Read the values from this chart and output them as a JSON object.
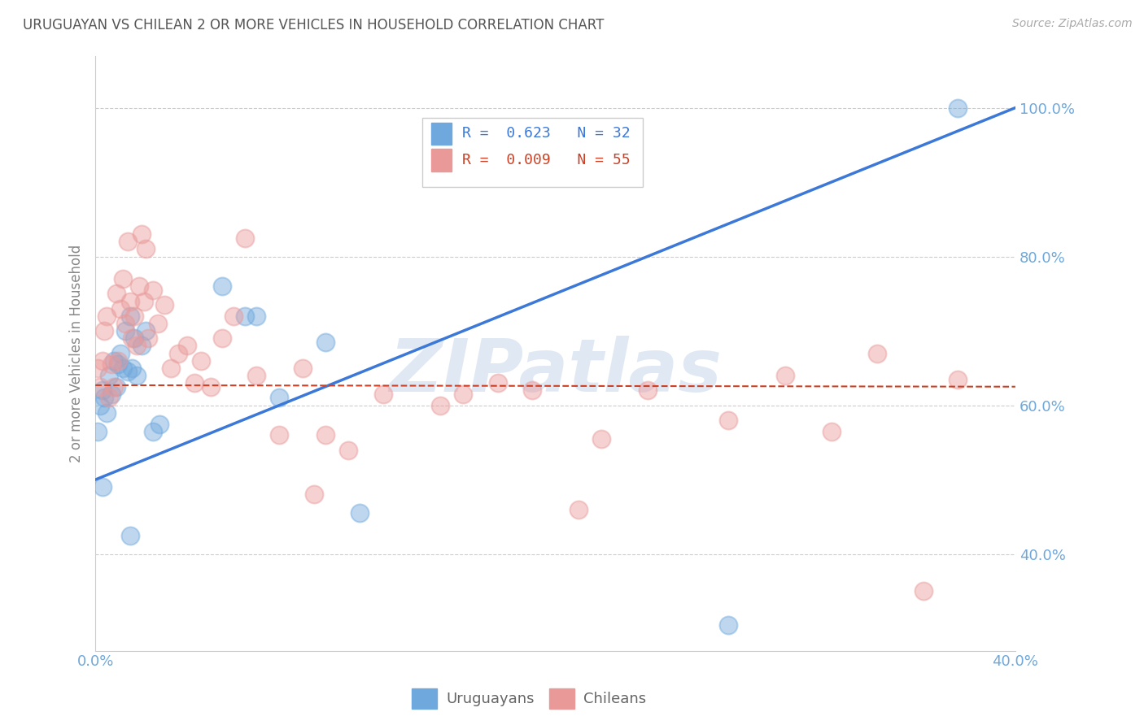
{
  "title": "URUGUAYAN VS CHILEAN 2 OR MORE VEHICLES IN HOUSEHOLD CORRELATION CHART",
  "source": "Source: ZipAtlas.com",
  "ylabel": "2 or more Vehicles in Household",
  "xlabel_uruguayans": "Uruguayans",
  "xlabel_chileans": "Chileans",
  "legend_line1": "R =  0.623   N = 32",
  "legend_line2": "R =  0.009   N = 55",
  "watermark": "ZIPatlas",
  "xlim": [
    0.0,
    0.4
  ],
  "ylim": [
    0.27,
    1.07
  ],
  "yticks": [
    0.4,
    0.6,
    0.8,
    1.0
  ],
  "ytick_labels": [
    "40.0%",
    "60.0%",
    "80.0%",
    "100.0%"
  ],
  "xtick_positions": [
    0.0,
    0.05,
    0.1,
    0.15,
    0.2,
    0.25,
    0.3,
    0.35,
    0.4
  ],
  "xtick_labels": [
    "0.0%",
    "",
    "",
    "",
    "",
    "",
    "",
    "",
    "40.0%"
  ],
  "blue_color": "#6fa8dc",
  "pink_color": "#ea9999",
  "blue_line_color": "#3c78d8",
  "pink_line_color": "#cc4125",
  "grid_color": "#cccccc",
  "title_color": "#555555",
  "axis_label_color": "#888888",
  "tick_label_color": "#6fa8dc",
  "uru_x": [
    0.001,
    0.002,
    0.003,
    0.004,
    0.005,
    0.006,
    0.007,
    0.008,
    0.009,
    0.01,
    0.011,
    0.012,
    0.013,
    0.014,
    0.015,
    0.016,
    0.017,
    0.018,
    0.02,
    0.022,
    0.025,
    0.028,
    0.055,
    0.065,
    0.07,
    0.08,
    0.1,
    0.115,
    0.275,
    0.375,
    0.003,
    0.015
  ],
  "uru_y": [
    0.565,
    0.6,
    0.62,
    0.61,
    0.59,
    0.64,
    0.615,
    0.66,
    0.625,
    0.655,
    0.67,
    0.65,
    0.7,
    0.645,
    0.72,
    0.65,
    0.69,
    0.64,
    0.68,
    0.7,
    0.565,
    0.575,
    0.76,
    0.72,
    0.72,
    0.61,
    0.685,
    0.455,
    0.305,
    1.0,
    0.49,
    0.425
  ],
  "chi_x": [
    0.001,
    0.002,
    0.003,
    0.004,
    0.005,
    0.006,
    0.007,
    0.008,
    0.009,
    0.01,
    0.011,
    0.012,
    0.013,
    0.014,
    0.015,
    0.016,
    0.017,
    0.018,
    0.019,
    0.02,
    0.021,
    0.022,
    0.023,
    0.025,
    0.027,
    0.03,
    0.033,
    0.036,
    0.04,
    0.043,
    0.046,
    0.05,
    0.055,
    0.06,
    0.065,
    0.07,
    0.08,
    0.09,
    0.1,
    0.11,
    0.125,
    0.15,
    0.16,
    0.175,
    0.19,
    0.21,
    0.22,
    0.24,
    0.275,
    0.3,
    0.32,
    0.34,
    0.36,
    0.375,
    0.095
  ],
  "chi_y": [
    0.65,
    0.625,
    0.66,
    0.7,
    0.72,
    0.61,
    0.655,
    0.625,
    0.75,
    0.66,
    0.73,
    0.77,
    0.71,
    0.82,
    0.74,
    0.69,
    0.72,
    0.68,
    0.76,
    0.83,
    0.74,
    0.81,
    0.69,
    0.755,
    0.71,
    0.735,
    0.65,
    0.67,
    0.68,
    0.63,
    0.66,
    0.625,
    0.69,
    0.72,
    0.825,
    0.64,
    0.56,
    0.65,
    0.56,
    0.54,
    0.615,
    0.6,
    0.615,
    0.63,
    0.62,
    0.46,
    0.555,
    0.62,
    0.58,
    0.64,
    0.565,
    0.67,
    0.35,
    0.635,
    0.48
  ]
}
